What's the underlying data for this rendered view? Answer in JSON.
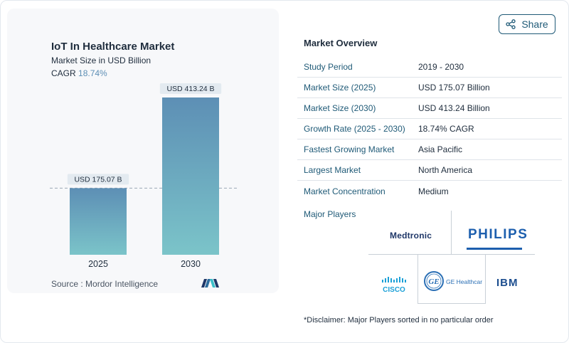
{
  "chart": {
    "title": "IoT In Healthcare Market",
    "subtitle": "Market Size in USD Billion",
    "cagr_label": "CAGR",
    "cagr_value": "18.74%",
    "source": "Source :  Mordor Intelligence"
  },
  "chart_data": {
    "type": "bar",
    "categories": [
      "2025",
      "2030"
    ],
    "values": [
      175.07,
      413.24
    ],
    "value_labels": [
      "USD 175.07 B",
      "USD 413.24 B"
    ],
    "title": "IoT In Healthcare Market",
    "subtitle": "Market Size in USD Billion",
    "xlabel": "",
    "ylabel": "",
    "ylim": [
      0,
      413.24
    ],
    "grid": false,
    "reference_line": "dashed line at 2025 value",
    "colors": {
      "bar_top": "#5d8fb5",
      "bar_bottom": "#7bc4c9",
      "label_bg": "#e3eaf0",
      "dash": "#9aa8b6"
    }
  },
  "share": {
    "label": "Share",
    "icon": "share-icon"
  },
  "overview": {
    "title": "Market Overview",
    "rows": [
      {
        "label": "Study Period",
        "value": "2019 - 2030"
      },
      {
        "label": "Market Size (2025)",
        "value": "USD 175.07 Billion"
      },
      {
        "label": "Market Size (2030)",
        "value": "USD 413.24 Billion"
      },
      {
        "label": "Growth Rate (2025 - 2030)",
        "value": "18.74% CAGR"
      },
      {
        "label": "Fastest Growing Market",
        "value": "Asia Pacific"
      },
      {
        "label": "Largest Market",
        "value": "North America"
      },
      {
        "label": "Market Concentration",
        "value": "Medium"
      }
    ]
  },
  "players": {
    "label": "Major Players",
    "medtronic": "Medtronic",
    "philips": "PHILIPS",
    "cisco": "CISCO",
    "ge_mark": "GE",
    "ge_name": "GE Healthcare",
    "ibm": "IBM"
  },
  "disclaimer": "*Disclaimer: Major Players sorted in no particular order"
}
